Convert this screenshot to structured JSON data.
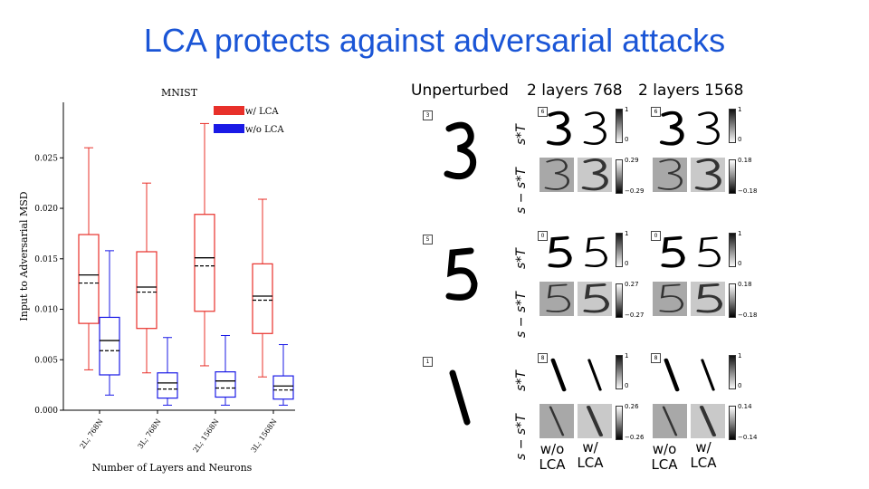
{
  "slide": {
    "title": "LCA protects against adversarial attacks"
  },
  "chart_data": {
    "type": "box",
    "title": "MNIST",
    "xlabel": "Number of Layers and Neurons",
    "ylabel": "Input to Adversarial MSD",
    "ylim": [
      0,
      0.0305
    ],
    "yticks": [
      "0.000",
      "0.005",
      "0.010",
      "0.015",
      "0.020",
      "0.025"
    ],
    "categories": [
      "2L; 768N",
      "3L; 768N",
      "2L; 1568N",
      "3L; 1568N"
    ],
    "series": [
      {
        "name": "w/ LCA",
        "color": "#e8302a",
        "boxes": [
          {
            "whislo": 0.004,
            "q1": 0.0086,
            "median": 0.0134,
            "mean": 0.0126,
            "q3": 0.0174,
            "whishi": 0.026
          },
          {
            "whislo": 0.0037,
            "q1": 0.0081,
            "median": 0.0122,
            "mean": 0.0117,
            "q3": 0.0157,
            "whishi": 0.0225
          },
          {
            "whislo": 0.0044,
            "q1": 0.0098,
            "median": 0.0151,
            "mean": 0.0143,
            "q3": 0.0194,
            "whishi": 0.0284
          },
          {
            "whislo": 0.0033,
            "q1": 0.0076,
            "median": 0.0113,
            "mean": 0.0109,
            "q3": 0.0145,
            "whishi": 0.0209
          }
        ]
      },
      {
        "name": "w/o LCA",
        "color": "#1a1ae6",
        "boxes": [
          {
            "whislo": 0.0015,
            "q1": 0.0035,
            "median": 0.0069,
            "mean": 0.0059,
            "q3": 0.0092,
            "whishi": 0.0158
          },
          {
            "whislo": 0.0005,
            "q1": 0.0012,
            "median": 0.0027,
            "mean": 0.0021,
            "q3": 0.0037,
            "whishi": 0.0072
          },
          {
            "whislo": 0.0005,
            "q1": 0.0013,
            "median": 0.0029,
            "mean": 0.0022,
            "q3": 0.0038,
            "whishi": 0.0074
          },
          {
            "whislo": 0.0005,
            "q1": 0.0011,
            "median": 0.0024,
            "mean": 0.002,
            "q3": 0.0034,
            "whishi": 0.0065
          }
        ]
      }
    ],
    "legend_position": "top-right",
    "grid": false
  },
  "figure": {
    "col_unperturbed": "Unperturbed",
    "col_a": "2 layers 768",
    "col_b": "2 layers 1568",
    "row_label_top": "s*T",
    "row_label_bottom": "s − s*T",
    "foot_wo": "w/o",
    "foot_w": "w/",
    "foot_lca": "LCA",
    "digits": [
      {
        "true_label": "3",
        "pred_label": "6",
        "cb_top": [
          "1",
          "0"
        ],
        "a_diff": [
          "0.29",
          "−0.29"
        ],
        "b_diff": [
          "0.18",
          "−0.18"
        ]
      },
      {
        "true_label": "5",
        "pred_label": "0",
        "cb_top": [
          "1",
          "0"
        ],
        "a_diff": [
          "0.27",
          "−0.27"
        ],
        "b_diff": [
          "0.18",
          "−0.18"
        ]
      },
      {
        "true_label": "1",
        "pred_label": "8",
        "cb_top": [
          "1",
          "0"
        ],
        "a_diff": [
          "0.26",
          "−0.26"
        ],
        "b_diff": [
          "0.14",
          "−0.14"
        ]
      }
    ]
  }
}
